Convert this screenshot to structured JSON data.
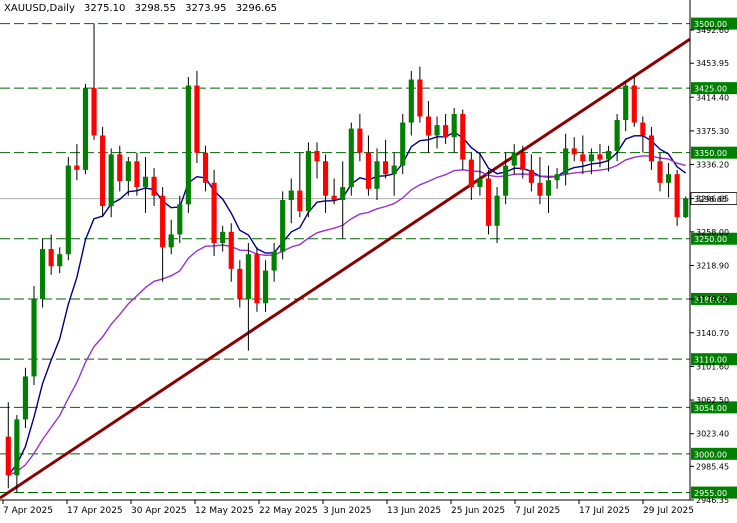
{
  "header": {
    "symbol": "XAUUSD,Daily",
    "open": "3275.10",
    "high": "3298.55",
    "low": "3273.95",
    "close": "3296.65"
  },
  "colors": {
    "bull": "#008000",
    "bear": "#ff0000",
    "ma_fast": "#000080",
    "ma_slow": "#9933cc",
    "trendline": "#8b0000",
    "level_line": "#006400",
    "level_box": "#008000",
    "price_box": "#ffffff"
  },
  "chart_data": {
    "type": "candlestick",
    "ylim": [
      2946.35,
      3510
    ],
    "grid": false,
    "y_tick_labels": [
      "3492.60",
      "3453.95",
      "3414.40",
      "3375.30",
      "3336.20",
      "3296.65",
      "3258.00",
      "3218.90",
      "3179.80",
      "3140.70",
      "3101.60",
      "3062.50",
      "3023.40",
      "2985.45",
      "2946.35"
    ],
    "x_tick_labels": [
      "7 Apr 2025",
      "17 Apr 2025",
      "30 Apr 2025",
      "12 May 2025",
      "22 May 2025",
      "3 Jun 2025",
      "13 Jun 2025",
      "25 Jun 2025",
      "7 Jul 2025",
      "17 Jul 2025",
      "29 Jul 2025"
    ],
    "levels": [
      "3500.00",
      "3425.00",
      "3350.00",
      "3250.00",
      "3180.00",
      "3110.00",
      "3054.00",
      "3000.00",
      "2955.00"
    ],
    "current_price": "3296.65",
    "trendline": {
      "start": [
        0,
        2952
      ],
      "end": [
        69,
        3412
      ]
    },
    "candles": [
      {
        "o": 3020,
        "h": 3060,
        "l": 2960,
        "c": 2975
      },
      {
        "o": 2975,
        "h": 3045,
        "l": 2955,
        "c": 3040
      },
      {
        "o": 3040,
        "h": 3100,
        "l": 3030,
        "c": 3090
      },
      {
        "o": 3090,
        "h": 3195,
        "l": 3080,
        "c": 3180
      },
      {
        "o": 3180,
        "h": 3250,
        "l": 3170,
        "c": 3238
      },
      {
        "o": 3238,
        "h": 3255,
        "l": 3208,
        "c": 3218
      },
      {
        "o": 3218,
        "h": 3240,
        "l": 3210,
        "c": 3232
      },
      {
        "o": 3232,
        "h": 3345,
        "l": 3225,
        "c": 3335
      },
      {
        "o": 3335,
        "h": 3360,
        "l": 3318,
        "c": 3330
      },
      {
        "o": 3330,
        "h": 3430,
        "l": 3325,
        "c": 3425
      },
      {
        "o": 3425,
        "h": 3500,
        "l": 3365,
        "c": 3370
      },
      {
        "o": 3370,
        "h": 3380,
        "l": 3275,
        "c": 3288
      },
      {
        "o": 3288,
        "h": 3355,
        "l": 3275,
        "c": 3348
      },
      {
        "o": 3348,
        "h": 3358,
        "l": 3305,
        "c": 3317
      },
      {
        "o": 3317,
        "h": 3345,
        "l": 3300,
        "c": 3340
      },
      {
        "o": 3340,
        "h": 3350,
        "l": 3300,
        "c": 3310
      },
      {
        "o": 3310,
        "h": 3345,
        "l": 3280,
        "c": 3322
      },
      {
        "o": 3322,
        "h": 3332,
        "l": 3288,
        "c": 3300
      },
      {
        "o": 3300,
        "h": 3310,
        "l": 3200,
        "c": 3240
      },
      {
        "o": 3240,
        "h": 3272,
        "l": 3232,
        "c": 3255
      },
      {
        "o": 3255,
        "h": 3300,
        "l": 3245,
        "c": 3290
      },
      {
        "o": 3290,
        "h": 3438,
        "l": 3280,
        "c": 3428
      },
      {
        "o": 3428,
        "h": 3445,
        "l": 3338,
        "c": 3350
      },
      {
        "o": 3350,
        "h": 3358,
        "l": 3305,
        "c": 3315
      },
      {
        "o": 3315,
        "h": 3330,
        "l": 3230,
        "c": 3245
      },
      {
        "o": 3245,
        "h": 3265,
        "l": 3235,
        "c": 3258
      },
      {
        "o": 3258,
        "h": 3268,
        "l": 3200,
        "c": 3215
      },
      {
        "o": 3215,
        "h": 3225,
        "l": 3170,
        "c": 3180
      },
      {
        "o": 3180,
        "h": 3245,
        "l": 3120,
        "c": 3232
      },
      {
        "o": 3232,
        "h": 3240,
        "l": 3165,
        "c": 3175
      },
      {
        "o": 3175,
        "h": 3225,
        "l": 3165,
        "c": 3213
      },
      {
        "o": 3213,
        "h": 3245,
        "l": 3200,
        "c": 3235
      },
      {
        "o": 3235,
        "h": 3305,
        "l": 3226,
        "c": 3295
      },
      {
        "o": 3295,
        "h": 3320,
        "l": 3268,
        "c": 3306
      },
      {
        "o": 3306,
        "h": 3350,
        "l": 3275,
        "c": 3282
      },
      {
        "o": 3282,
        "h": 3362,
        "l": 3275,
        "c": 3352
      },
      {
        "o": 3352,
        "h": 3362,
        "l": 3320,
        "c": 3340
      },
      {
        "o": 3340,
        "h": 3348,
        "l": 3280,
        "c": 3300
      },
      {
        "o": 3300,
        "h": 3320,
        "l": 3290,
        "c": 3295
      },
      {
        "o": 3295,
        "h": 3340,
        "l": 3250,
        "c": 3310
      },
      {
        "o": 3310,
        "h": 3385,
        "l": 3300,
        "c": 3378
      },
      {
        "o": 3378,
        "h": 3395,
        "l": 3340,
        "c": 3350
      },
      {
        "o": 3350,
        "h": 3370,
        "l": 3300,
        "c": 3308
      },
      {
        "o": 3308,
        "h": 3355,
        "l": 3295,
        "c": 3340
      },
      {
        "o": 3340,
        "h": 3365,
        "l": 3320,
        "c": 3325
      },
      {
        "o": 3325,
        "h": 3350,
        "l": 3300,
        "c": 3335
      },
      {
        "o": 3335,
        "h": 3395,
        "l": 3325,
        "c": 3385
      },
      {
        "o": 3385,
        "h": 3445,
        "l": 3370,
        "c": 3435
      },
      {
        "o": 3435,
        "h": 3450,
        "l": 3385,
        "c": 3392
      },
      {
        "o": 3392,
        "h": 3410,
        "l": 3350,
        "c": 3370
      },
      {
        "o": 3370,
        "h": 3392,
        "l": 3355,
        "c": 3382
      },
      {
        "o": 3382,
        "h": 3395,
        "l": 3360,
        "c": 3368
      },
      {
        "o": 3368,
        "h": 3402,
        "l": 3350,
        "c": 3395
      },
      {
        "o": 3395,
        "h": 3400,
        "l": 3330,
        "c": 3342
      },
      {
        "o": 3342,
        "h": 3350,
        "l": 3295,
        "c": 3310
      },
      {
        "o": 3310,
        "h": 3350,
        "l": 3300,
        "c": 3320
      },
      {
        "o": 3320,
        "h": 3330,
        "l": 3255,
        "c": 3265
      },
      {
        "o": 3265,
        "h": 3310,
        "l": 3245,
        "c": 3300
      },
      {
        "o": 3300,
        "h": 3350,
        "l": 3290,
        "c": 3335
      },
      {
        "o": 3335,
        "h": 3360,
        "l": 3325,
        "c": 3350
      },
      {
        "o": 3350,
        "h": 3358,
        "l": 3320,
        "c": 3330
      },
      {
        "o": 3330,
        "h": 3348,
        "l": 3305,
        "c": 3315
      },
      {
        "o": 3315,
        "h": 3345,
        "l": 3290,
        "c": 3300
      },
      {
        "o": 3300,
        "h": 3335,
        "l": 3280,
        "c": 3318
      },
      {
        "o": 3318,
        "h": 3332,
        "l": 3308,
        "c": 3325
      },
      {
        "o": 3325,
        "h": 3372,
        "l": 3312,
        "c": 3355
      },
      {
        "o": 3355,
        "h": 3368,
        "l": 3340,
        "c": 3348
      },
      {
        "o": 3348,
        "h": 3370,
        "l": 3325,
        "c": 3340
      },
      {
        "o": 3340,
        "h": 3355,
        "l": 3325,
        "c": 3348
      },
      {
        "o": 3348,
        "h": 3360,
        "l": 3333,
        "c": 3342
      },
      {
        "o": 3342,
        "h": 3358,
        "l": 3328,
        "c": 3352
      },
      {
        "o": 3352,
        "h": 3395,
        "l": 3340,
        "c": 3388
      },
      {
        "o": 3388,
        "h": 3433,
        "l": 3375,
        "c": 3428
      },
      {
        "o": 3428,
        "h": 3440,
        "l": 3380,
        "c": 3385
      },
      {
        "o": 3385,
        "h": 3392,
        "l": 3350,
        "c": 3370
      },
      {
        "o": 3370,
        "h": 3380,
        "l": 3330,
        "c": 3340
      },
      {
        "o": 3340,
        "h": 3350,
        "l": 3305,
        "c": 3315
      },
      {
        "o": 3315,
        "h": 3338,
        "l": 3298,
        "c": 3325
      },
      {
        "o": 3325,
        "h": 3330,
        "l": 3265,
        "c": 3275
      },
      {
        "o": 3275,
        "h": 3299,
        "l": 3274,
        "c": 3297
      }
    ]
  }
}
